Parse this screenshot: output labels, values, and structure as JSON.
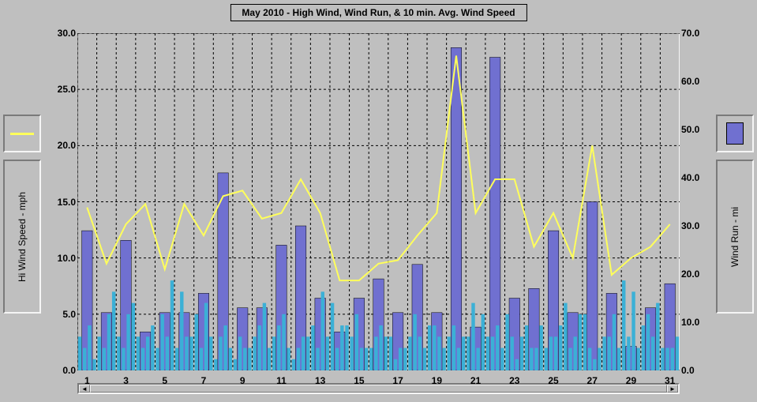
{
  "title": "May 2010 - High Wind, Wind Run, & 10 min. Avg. Wind Speed",
  "left_axis": {
    "label": "Hi Wind Speed - mph",
    "min": 0.0,
    "max": 30.0,
    "tick_step": 5.0,
    "ticks": [
      "0.0",
      "5.0",
      "10.0",
      "15.0",
      "20.0",
      "25.0",
      "30.0"
    ]
  },
  "right_axis": {
    "label": "Wind Run - mi",
    "min": 0.0,
    "max": 70.0,
    "tick_step": 10.0,
    "ticks": [
      "0.0",
      "10.0",
      "20.0",
      "30.0",
      "40.0",
      "50.0",
      "60.0",
      "70.0"
    ]
  },
  "x_axis": {
    "min": 1,
    "max": 31,
    "tick_step": 2
  },
  "colors": {
    "background": "#bfbfbf",
    "grid_dash": "#000000",
    "line_series": "#ffff5a",
    "wide_bar": "#7070d0",
    "thin_bar": "#3bb0d6",
    "panel_light": "#f5f5f5",
    "panel_dark": "#7a7a7a"
  },
  "wind_run_bars": [
    {
      "day": 1,
      "value": 29
    },
    {
      "day": 2,
      "value": 12
    },
    {
      "day": 3,
      "value": 27
    },
    {
      "day": 4,
      "value": 8
    },
    {
      "day": 5,
      "value": 12
    },
    {
      "day": 6,
      "value": 12
    },
    {
      "day": 7,
      "value": 16
    },
    {
      "day": 8,
      "value": 41
    },
    {
      "day": 9,
      "value": 13
    },
    {
      "day": 10,
      "value": 13
    },
    {
      "day": 11,
      "value": 26
    },
    {
      "day": 12,
      "value": 30
    },
    {
      "day": 13,
      "value": 15
    },
    {
      "day": 14,
      "value": 8
    },
    {
      "day": 15,
      "value": 15
    },
    {
      "day": 16,
      "value": 19
    },
    {
      "day": 17,
      "value": 12
    },
    {
      "day": 18,
      "value": 22
    },
    {
      "day": 19,
      "value": 12
    },
    {
      "day": 20,
      "value": 67
    },
    {
      "day": 21,
      "value": 9
    },
    {
      "day": 22,
      "value": 65
    },
    {
      "day": 23,
      "value": 15
    },
    {
      "day": 24,
      "value": 17
    },
    {
      "day": 25,
      "value": 29
    },
    {
      "day": 26,
      "value": 12
    },
    {
      "day": 27,
      "value": 35
    },
    {
      "day": 28,
      "value": 16
    },
    {
      "day": 29,
      "value": 5
    },
    {
      "day": 30,
      "value": 13
    },
    {
      "day": 31,
      "value": 18
    }
  ],
  "hi_wind_line": [
    {
      "day": 1,
      "value": 14.5
    },
    {
      "day": 2,
      "value": 9.5
    },
    {
      "day": 3,
      "value": 13.0
    },
    {
      "day": 4,
      "value": 14.8
    },
    {
      "day": 5,
      "value": 9.0
    },
    {
      "day": 6,
      "value": 14.8
    },
    {
      "day": 7,
      "value": 12.0
    },
    {
      "day": 8,
      "value": 15.5
    },
    {
      "day": 9,
      "value": 16.0
    },
    {
      "day": 10,
      "value": 13.5
    },
    {
      "day": 11,
      "value": 14.0
    },
    {
      "day": 12,
      "value": 17.0
    },
    {
      "day": 13,
      "value": 14.0
    },
    {
      "day": 14,
      "value": 8.0
    },
    {
      "day": 15,
      "value": 8.0
    },
    {
      "day": 16,
      "value": 9.5
    },
    {
      "day": 17,
      "value": 9.8
    },
    {
      "day": 18,
      "value": 12.0
    },
    {
      "day": 19,
      "value": 14.0
    },
    {
      "day": 20,
      "value": 28.0
    },
    {
      "day": 21,
      "value": 14.0
    },
    {
      "day": 22,
      "value": 17.0
    },
    {
      "day": 23,
      "value": 17.0
    },
    {
      "day": 24,
      "value": 11.0
    },
    {
      "day": 25,
      "value": 14.0
    },
    {
      "day": 26,
      "value": 10.0
    },
    {
      "day": 27,
      "value": 20.0
    },
    {
      "day": 28,
      "value": 8.5
    },
    {
      "day": 29,
      "value": 10.0
    },
    {
      "day": 30,
      "value": 11.0
    },
    {
      "day": 31,
      "value": 13.0
    }
  ],
  "avg_wind_thin": [
    3,
    2,
    4,
    1,
    3,
    2,
    5,
    7,
    3,
    2,
    5,
    6,
    3,
    2,
    3,
    4,
    2,
    5,
    3,
    8,
    2,
    7,
    3,
    3,
    5,
    2,
    6,
    3,
    1,
    3,
    4,
    2,
    1,
    3,
    2,
    2,
    3,
    4,
    6,
    2,
    3,
    4,
    5,
    2,
    1,
    2,
    3,
    3,
    4,
    2,
    7,
    3,
    6,
    2,
    4,
    4,
    3,
    5,
    2,
    2,
    2,
    3,
    4,
    3,
    3,
    1,
    2,
    2,
    3,
    5,
    3,
    2,
    4,
    4,
    3,
    2,
    3,
    4,
    2,
    3,
    3,
    6,
    2,
    5,
    3,
    3,
    4,
    2,
    5,
    3,
    1,
    3,
    4,
    2,
    2,
    4,
    2,
    3,
    3,
    4,
    6,
    2,
    3,
    5,
    5,
    2,
    1,
    2,
    3,
    3,
    5,
    2,
    8,
    3,
    7,
    2,
    4,
    5,
    3,
    6,
    2,
    2,
    2,
    3
  ],
  "style": {
    "title_fontsize": 12,
    "label_fontsize": 12,
    "tick_fontsize": 12,
    "line_width": 2,
    "wide_bar_rel_width": 0.55,
    "thin_bar_rel_width": 0.18,
    "grid_dash_pattern": "3,3"
  }
}
